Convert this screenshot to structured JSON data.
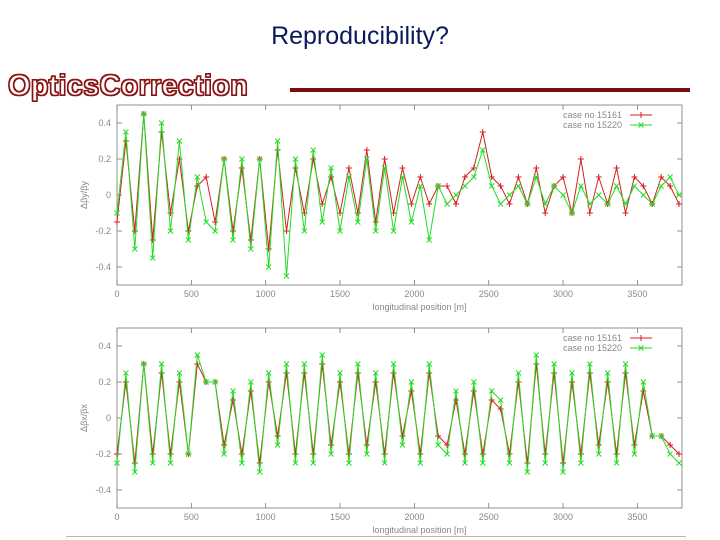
{
  "slide": {
    "title": "Reproducibility?",
    "brand": "OpticsCorrection"
  },
  "colors": {
    "case1": "#d42020",
    "case2": "#22dd22",
    "brand_rule": "#7a0e0e"
  },
  "chart_data": [
    {
      "type": "line",
      "ylabel": "Δβy/βy",
      "xlabel": "longitudinal position [m]",
      "xlim": [
        0,
        3800
      ],
      "ylim": [
        -0.5,
        0.5
      ],
      "xticks": [
        0,
        500,
        1000,
        1500,
        2000,
        2500,
        3000,
        3500
      ],
      "yticks": [
        -0.4,
        -0.2,
        0,
        0.2,
        0.4
      ],
      "grid": false,
      "legend_position": "top-right",
      "series": [
        {
          "name": "case no 15161",
          "color": "#d42020",
          "marker": "+",
          "x": [
            0,
            60,
            120,
            180,
            240,
            300,
            360,
            420,
            480,
            540,
            600,
            660,
            720,
            780,
            840,
            900,
            960,
            1020,
            1080,
            1140,
            1200,
            1260,
            1320,
            1380,
            1440,
            1500,
            1560,
            1620,
            1680,
            1740,
            1800,
            1860,
            1920,
            1980,
            2040,
            2100,
            2160,
            2220,
            2280,
            2340,
            2400,
            2460,
            2520,
            2580,
            2640,
            2700,
            2760,
            2820,
            2880,
            2940,
            3000,
            3060,
            3120,
            3180,
            3240,
            3300,
            3360,
            3420,
            3480,
            3540,
            3600,
            3660,
            3720,
            3780
          ],
          "y": [
            -0.15,
            0.3,
            -0.2,
            0.45,
            -0.25,
            0.35,
            -0.1,
            0.2,
            -0.2,
            0.05,
            0.1,
            -0.15,
            0.2,
            -0.2,
            0.15,
            -0.25,
            0.2,
            -0.3,
            0.25,
            -0.2,
            0.15,
            -0.1,
            0.2,
            -0.05,
            0.1,
            -0.1,
            0.15,
            -0.1,
            0.25,
            -0.15,
            0.2,
            -0.1,
            0.15,
            -0.05,
            0.1,
            -0.05,
            0.05,
            0.05,
            -0.05,
            0.1,
            0.15,
            0.35,
            0.1,
            0.05,
            -0.05,
            0.1,
            -0.05,
            0.15,
            -0.1,
            0.05,
            0.1,
            -0.1,
            0.2,
            -0.1,
            0.1,
            -0.05,
            0.15,
            -0.1,
            0.1,
            0.05,
            -0.05,
            0.1,
            0.05,
            -0.05
          ]
        },
        {
          "name": "case no 15220",
          "color": "#22dd22",
          "marker": "×",
          "x": [
            0,
            60,
            120,
            180,
            240,
            300,
            360,
            420,
            480,
            540,
            600,
            660,
            720,
            780,
            840,
            900,
            960,
            1020,
            1080,
            1140,
            1200,
            1260,
            1320,
            1380,
            1440,
            1500,
            1560,
            1620,
            1680,
            1740,
            1800,
            1860,
            1920,
            1980,
            2040,
            2100,
            2160,
            2220,
            2280,
            2340,
            2400,
            2460,
            2520,
            2580,
            2640,
            2700,
            2760,
            2820,
            2880,
            2940,
            3000,
            3060,
            3120,
            3180,
            3240,
            3300,
            3360,
            3420,
            3480,
            3540,
            3600,
            3660,
            3720,
            3780
          ],
          "y": [
            -0.1,
            0.35,
            -0.3,
            0.45,
            -0.35,
            0.4,
            -0.2,
            0.3,
            -0.25,
            0.1,
            -0.15,
            -0.2,
            0.2,
            -0.25,
            0.2,
            -0.3,
            0.2,
            -0.4,
            0.3,
            -0.45,
            0.2,
            -0.2,
            0.25,
            -0.15,
            0.15,
            -0.2,
            0.1,
            -0.15,
            0.2,
            -0.2,
            0.15,
            -0.2,
            0.1,
            -0.15,
            0.05,
            -0.25,
            0.05,
            -0.05,
            0.0,
            0.05,
            0.1,
            0.25,
            0.05,
            -0.05,
            0.0,
            0.05,
            -0.05,
            0.1,
            -0.05,
            0.05,
            0.0,
            -0.1,
            0.05,
            -0.05,
            0.0,
            -0.05,
            0.05,
            -0.05,
            0.05,
            0.0,
            -0.05,
            0.05,
            0.1,
            0.0
          ]
        }
      ]
    },
    {
      "type": "line",
      "ylabel": "Δβx/βx",
      "xlabel": "longitudinal position [m]",
      "xlim": [
        0,
        3800
      ],
      "ylim": [
        -0.5,
        0.5
      ],
      "xticks": [
        0,
        500,
        1000,
        1500,
        2000,
        2500,
        3000,
        3500
      ],
      "yticks": [
        -0.4,
        -0.2,
        0,
        0.2,
        0.4
      ],
      "grid": false,
      "legend_position": "top-right",
      "series": [
        {
          "name": "case no 15161",
          "color": "#d42020",
          "marker": "+",
          "x": [
            0,
            60,
            120,
            180,
            240,
            300,
            360,
            420,
            480,
            540,
            600,
            660,
            720,
            780,
            840,
            900,
            960,
            1020,
            1080,
            1140,
            1200,
            1260,
            1320,
            1380,
            1440,
            1500,
            1560,
            1620,
            1680,
            1740,
            1800,
            1860,
            1920,
            1980,
            2040,
            2100,
            2160,
            2220,
            2280,
            2340,
            2400,
            2460,
            2520,
            2580,
            2640,
            2700,
            2760,
            2820,
            2880,
            2940,
            3000,
            3060,
            3120,
            3180,
            3240,
            3300,
            3360,
            3420,
            3480,
            3540,
            3600,
            3660,
            3720,
            3780
          ],
          "y": [
            -0.2,
            0.2,
            -0.25,
            0.3,
            -0.2,
            0.25,
            -0.2,
            0.2,
            -0.2,
            0.3,
            0.2,
            0.2,
            -0.15,
            0.1,
            -0.2,
            0.15,
            -0.25,
            0.2,
            -0.1,
            0.25,
            -0.2,
            0.25,
            -0.2,
            0.3,
            -0.15,
            0.2,
            -0.2,
            0.25,
            -0.15,
            0.2,
            -0.2,
            0.25,
            -0.1,
            0.15,
            -0.2,
            0.25,
            -0.1,
            -0.15,
            0.1,
            -0.2,
            0.15,
            -0.2,
            0.1,
            0.05,
            -0.2,
            0.2,
            -0.25,
            0.3,
            -0.2,
            0.25,
            -0.25,
            0.2,
            -0.2,
            0.25,
            -0.15,
            0.2,
            -0.2,
            0.25,
            -0.15,
            0.15,
            -0.1,
            -0.1,
            -0.15,
            -0.2
          ]
        },
        {
          "name": "case no 15220",
          "color": "#22dd22",
          "marker": "×",
          "x": [
            0,
            60,
            120,
            180,
            240,
            300,
            360,
            420,
            480,
            540,
            600,
            660,
            720,
            780,
            840,
            900,
            960,
            1020,
            1080,
            1140,
            1200,
            1260,
            1320,
            1380,
            1440,
            1500,
            1560,
            1620,
            1680,
            1740,
            1800,
            1860,
            1920,
            1980,
            2040,
            2100,
            2160,
            2220,
            2280,
            2340,
            2400,
            2460,
            2520,
            2580,
            2640,
            2700,
            2760,
            2820,
            2880,
            2940,
            3000,
            3060,
            3120,
            3180,
            3240,
            3300,
            3360,
            3420,
            3480,
            3540,
            3600,
            3660,
            3720,
            3780
          ],
          "y": [
            -0.25,
            0.25,
            -0.3,
            0.3,
            -0.25,
            0.3,
            -0.25,
            0.25,
            -0.2,
            0.35,
            0.2,
            0.2,
            -0.2,
            0.15,
            -0.25,
            0.2,
            -0.3,
            0.25,
            -0.15,
            0.3,
            -0.25,
            0.3,
            -0.25,
            0.35,
            -0.2,
            0.25,
            -0.25,
            0.3,
            -0.2,
            0.25,
            -0.25,
            0.3,
            -0.15,
            0.2,
            -0.25,
            0.3,
            -0.15,
            -0.2,
            0.15,
            -0.25,
            0.2,
            -0.25,
            0.15,
            0.1,
            -0.25,
            0.25,
            -0.3,
            0.35,
            -0.25,
            0.3,
            -0.3,
            0.25,
            -0.25,
            0.3,
            -0.2,
            0.25,
            -0.25,
            0.3,
            -0.2,
            0.2,
            -0.1,
            -0.1,
            -0.2,
            -0.25
          ]
        }
      ]
    }
  ]
}
